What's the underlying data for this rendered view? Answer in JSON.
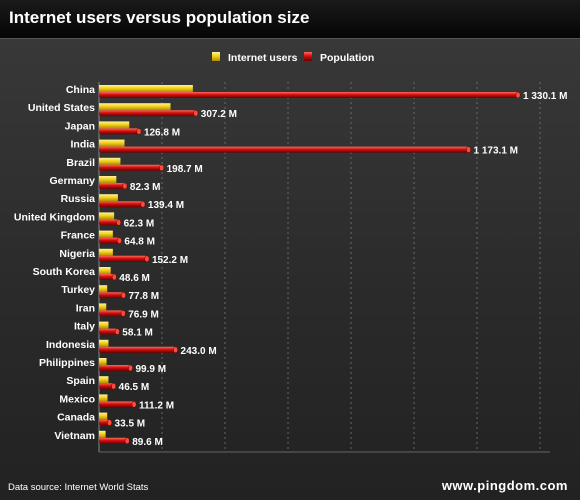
{
  "title": "Internet users versus population size",
  "footer": {
    "source": "Data source: Internet World Stats",
    "brand": "www.pingdom.com"
  },
  "colors": {
    "internet_users": "#f5d21a",
    "population": "#d20f0f",
    "background": "#2e2e2e"
  },
  "chart_data": {
    "type": "bar",
    "orientation": "horizontal",
    "categories": [
      "China",
      "United States",
      "Japan",
      "India",
      "Brazil",
      "Germany",
      "Russia",
      "United Kingdom",
      "France",
      "Nigeria",
      "South Korea",
      "Turkey",
      "Iran",
      "Italy",
      "Indonesia",
      "Philippines",
      "Spain",
      "Mexico",
      "Canada",
      "Vietnam"
    ],
    "series": [
      {
        "name": "Internet users",
        "values": [
          298,
          227,
          96,
          81,
          68,
          55,
          60,
          48,
          44,
          44,
          37,
          26,
          23,
          30,
          30,
          24,
          30,
          27,
          26,
          21
        ]
      },
      {
        "name": "Population",
        "values": [
          1330.1,
          307.2,
          126.8,
          1173.1,
          198.7,
          82.3,
          139.4,
          62.3,
          64.8,
          152.2,
          48.6,
          77.8,
          76.9,
          58.1,
          243.0,
          99.9,
          46.5,
          111.2,
          33.5,
          89.6
        ],
        "labels": [
          "1 330.1 M",
          "307.2 M",
          "126.8 M",
          "1 173.1 M",
          "198.7 M",
          "82.3 M",
          "139.4 M",
          "62.3 M",
          "64.8 M",
          "152.2 M",
          "48.6 M",
          "77.8 M",
          "76.9 M",
          "58.1 M",
          "243.0 M",
          "99.9 M",
          "46.5 M",
          "111.2 M",
          "33.5 M",
          "89.6 M"
        ]
      }
    ],
    "xlim": [
      0,
      1400
    ],
    "legend_position": "top-center",
    "grid": true
  }
}
